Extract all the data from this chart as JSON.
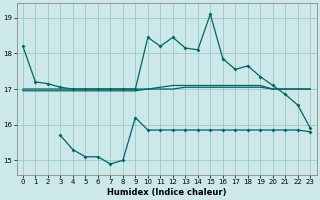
{
  "xlabel": "Humidex (Indice chaleur)",
  "background_color": "#cce8e8",
  "grid_color": "#9dc8c8",
  "line_color": "#006666",
  "ylim": [
    14.6,
    19.4
  ],
  "xlim": [
    -0.5,
    23.5
  ],
  "yticks": [
    15,
    16,
    17,
    18,
    19
  ],
  "xticks": [
    0,
    1,
    2,
    3,
    4,
    5,
    6,
    7,
    8,
    9,
    10,
    11,
    12,
    13,
    14,
    15,
    16,
    17,
    18,
    19,
    20,
    21,
    22,
    23
  ],
  "curve_main_x": [
    0,
    1,
    2,
    3,
    4,
    5,
    6,
    7,
    8,
    9,
    10,
    11,
    12,
    13,
    14,
    15,
    16,
    17,
    18,
    19,
    20,
    21,
    22,
    23
  ],
  "curve_main": [
    18.2,
    17.2,
    17.15,
    17.05,
    17.0,
    17.0,
    17.0,
    17.0,
    17.0,
    17.0,
    18.45,
    18.2,
    18.45,
    18.15,
    18.1,
    19.1,
    17.85,
    17.55,
    17.65,
    17.35,
    17.1,
    16.85,
    16.55,
    15.9
  ],
  "curve_low_x": [
    3,
    4,
    5,
    6,
    7,
    8,
    9,
    10,
    11,
    12,
    13,
    14,
    15,
    16,
    17,
    18,
    19,
    20,
    21,
    22,
    23
  ],
  "curve_low": [
    15.7,
    15.3,
    15.1,
    15.1,
    14.9,
    15.0,
    16.2,
    15.85,
    15.85,
    15.85,
    15.85,
    15.85,
    15.85,
    15.85,
    15.85,
    15.85,
    15.85,
    15.85,
    15.85,
    15.85,
    15.8
  ],
  "flat1": [
    17.0,
    17.0,
    17.0,
    17.0,
    17.0,
    17.0,
    17.0,
    17.0,
    17.0,
    17.0,
    17.0,
    17.0,
    17.0,
    17.05,
    17.05,
    17.05,
    17.05,
    17.05,
    17.05,
    17.05,
    17.0,
    17.0,
    17.0,
    17.0
  ],
  "flat2": [
    16.95,
    16.95,
    16.95,
    16.95,
    16.95,
    16.95,
    16.95,
    16.95,
    16.95,
    16.95,
    17.0,
    17.05,
    17.1,
    17.1,
    17.1,
    17.1,
    17.1,
    17.1,
    17.1,
    17.1,
    17.0,
    17.0,
    17.0,
    17.0
  ]
}
